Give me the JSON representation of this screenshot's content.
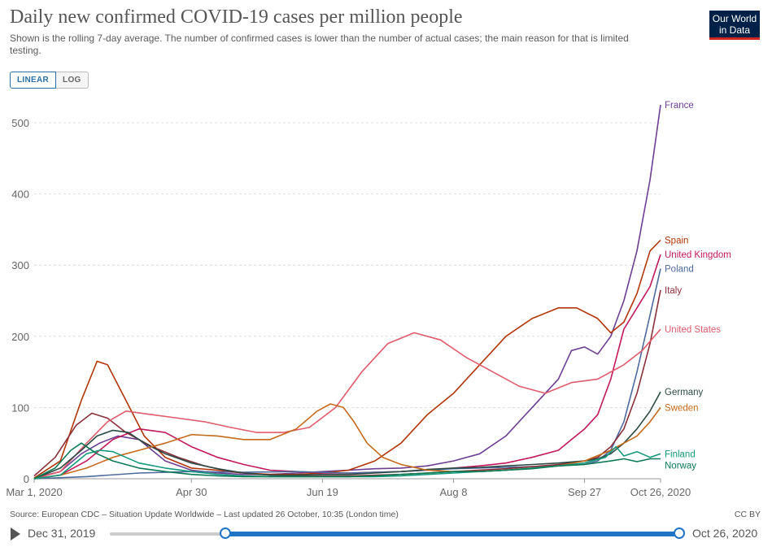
{
  "header": {
    "title": "Daily new confirmed COVID-19 cases per million people",
    "subtitle": "Shown is the rolling 7-day average. The number of confirmed cases is lower than the number of actual cases; the main reason for that is limited testing.",
    "logo_line1": "Our World",
    "logo_line2": "in Data"
  },
  "scale": {
    "linear_label": "LINEAR",
    "log_label": "LOG",
    "selected": "LINEAR"
  },
  "footer": {
    "source": "Source: European CDC – Situation Update Worldwide – Last updated 26 October, 10:35 (London time)",
    "license": "CC BY"
  },
  "timeline": {
    "start_label": "Dec 31, 2019",
    "end_label": "Oct 26, 2020",
    "range_start": "Mar 1, 2020",
    "range_end": "Oct 26, 2020"
  },
  "chart_data": {
    "type": "line",
    "title": "Daily new confirmed COVID-19 cases per million people",
    "x_unit": "days since Mar 1, 2020",
    "xlim": [
      0,
      239
    ],
    "ylim": [
      0,
      530
    ],
    "y_ticks": [
      0,
      100,
      200,
      300,
      400,
      500
    ],
    "x_ticks": [
      {
        "day": 0,
        "label": "Mar 1, 2020"
      },
      {
        "day": 60,
        "label": "Apr 30"
      },
      {
        "day": 110,
        "label": "Jun 19"
      },
      {
        "day": 160,
        "label": "Aug 8"
      },
      {
        "day": 210,
        "label": "Sep 27"
      },
      {
        "day": 239,
        "label": "Oct 26, 2020"
      }
    ],
    "grid": "horizontal",
    "legend": "end-of-line labels",
    "series": [
      {
        "name": "France",
        "color": "#6d3e91",
        "points": [
          [
            0,
            1
          ],
          [
            10,
            10
          ],
          [
            18,
            35
          ],
          [
            25,
            50
          ],
          [
            32,
            60
          ],
          [
            40,
            55
          ],
          [
            50,
            25
          ],
          [
            60,
            12
          ],
          [
            70,
            8
          ],
          [
            80,
            6
          ],
          [
            90,
            6
          ],
          [
            100,
            8
          ],
          [
            110,
            10
          ],
          [
            120,
            12
          ],
          [
            130,
            14
          ],
          [
            140,
            15
          ],
          [
            150,
            18
          ],
          [
            160,
            25
          ],
          [
            170,
            35
          ],
          [
            180,
            60
          ],
          [
            190,
            100
          ],
          [
            200,
            140
          ],
          [
            205,
            180
          ],
          [
            210,
            185
          ],
          [
            215,
            175
          ],
          [
            220,
            200
          ],
          [
            225,
            250
          ],
          [
            230,
            320
          ],
          [
            235,
            420
          ],
          [
            239,
            525
          ]
        ]
      },
      {
        "name": "Spain",
        "color": "#b13507",
        "points": [
          [
            0,
            1
          ],
          [
            10,
            25
          ],
          [
            18,
            110
          ],
          [
            24,
            165
          ],
          [
            28,
            160
          ],
          [
            35,
            110
          ],
          [
            42,
            60
          ],
          [
            50,
            30
          ],
          [
            60,
            15
          ],
          [
            70,
            12
          ],
          [
            80,
            8
          ],
          [
            90,
            6
          ],
          [
            100,
            6
          ],
          [
            110,
            8
          ],
          [
            120,
            12
          ],
          [
            130,
            25
          ],
          [
            140,
            50
          ],
          [
            150,
            90
          ],
          [
            160,
            120
          ],
          [
            170,
            160
          ],
          [
            180,
            200
          ],
          [
            190,
            225
          ],
          [
            200,
            240
          ],
          [
            207,
            240
          ],
          [
            215,
            225
          ],
          [
            220,
            205
          ],
          [
            225,
            220
          ],
          [
            230,
            260
          ],
          [
            235,
            320
          ],
          [
            239,
            335
          ]
        ]
      },
      {
        "name": "United Kingdom",
        "color": "#c2185b",
        "points": [
          [
            0,
            0
          ],
          [
            10,
            5
          ],
          [
            20,
            25
          ],
          [
            30,
            55
          ],
          [
            40,
            70
          ],
          [
            50,
            65
          ],
          [
            60,
            45
          ],
          [
            70,
            30
          ],
          [
            80,
            20
          ],
          [
            90,
            12
          ],
          [
            100,
            10
          ],
          [
            110,
            8
          ],
          [
            120,
            8
          ],
          [
            130,
            9
          ],
          [
            140,
            10
          ],
          [
            150,
            12
          ],
          [
            160,
            15
          ],
          [
            170,
            18
          ],
          [
            180,
            22
          ],
          [
            190,
            30
          ],
          [
            200,
            40
          ],
          [
            205,
            55
          ],
          [
            210,
            70
          ],
          [
            215,
            90
          ],
          [
            220,
            140
          ],
          [
            225,
            210
          ],
          [
            230,
            240
          ],
          [
            235,
            270
          ],
          [
            239,
            315
          ]
        ]
      },
      {
        "name": "Poland",
        "color": "#4c6a9c",
        "points": [
          [
            0,
            0
          ],
          [
            20,
            3
          ],
          [
            40,
            8
          ],
          [
            60,
            10
          ],
          [
            80,
            9
          ],
          [
            100,
            10
          ],
          [
            120,
            8
          ],
          [
            140,
            10
          ],
          [
            160,
            14
          ],
          [
            180,
            16
          ],
          [
            200,
            18
          ],
          [
            210,
            20
          ],
          [
            215,
            25
          ],
          [
            220,
            40
          ],
          [
            225,
            80
          ],
          [
            230,
            150
          ],
          [
            235,
            230
          ],
          [
            239,
            295
          ]
        ]
      },
      {
        "name": "Italy",
        "color": "#883039",
        "points": [
          [
            0,
            4
          ],
          [
            8,
            30
          ],
          [
            16,
            75
          ],
          [
            22,
            92
          ],
          [
            28,
            85
          ],
          [
            35,
            65
          ],
          [
            45,
            45
          ],
          [
            55,
            30
          ],
          [
            65,
            18
          ],
          [
            75,
            10
          ],
          [
            85,
            6
          ],
          [
            100,
            4
          ],
          [
            120,
            4
          ],
          [
            140,
            6
          ],
          [
            160,
            10
          ],
          [
            180,
            14
          ],
          [
            200,
            20
          ],
          [
            210,
            25
          ],
          [
            215,
            30
          ],
          [
            220,
            45
          ],
          [
            225,
            70
          ],
          [
            230,
            120
          ],
          [
            235,
            190
          ],
          [
            239,
            265
          ]
        ]
      },
      {
        "name": "United States",
        "color": "#e05b6b",
        "points": [
          [
            0,
            0
          ],
          [
            10,
            10
          ],
          [
            20,
            50
          ],
          [
            28,
            80
          ],
          [
            35,
            95
          ],
          [
            45,
            90
          ],
          [
            55,
            85
          ],
          [
            65,
            80
          ],
          [
            75,
            72
          ],
          [
            85,
            65
          ],
          [
            95,
            65
          ],
          [
            105,
            72
          ],
          [
            115,
            100
          ],
          [
            125,
            150
          ],
          [
            135,
            190
          ],
          [
            145,
            205
          ],
          [
            155,
            195
          ],
          [
            165,
            170
          ],
          [
            175,
            150
          ],
          [
            185,
            130
          ],
          [
            195,
            120
          ],
          [
            205,
            135
          ],
          [
            215,
            140
          ],
          [
            225,
            160
          ],
          [
            232,
            180
          ],
          [
            239,
            210
          ]
        ]
      },
      {
        "name": "Germany",
        "color": "#2c4a44",
        "points": [
          [
            0,
            0
          ],
          [
            10,
            15
          ],
          [
            18,
            40
          ],
          [
            24,
            60
          ],
          [
            30,
            68
          ],
          [
            36,
            65
          ],
          [
            42,
            50
          ],
          [
            50,
            35
          ],
          [
            60,
            22
          ],
          [
            70,
            14
          ],
          [
            80,
            8
          ],
          [
            90,
            5
          ],
          [
            100,
            5
          ],
          [
            110,
            6
          ],
          [
            120,
            6
          ],
          [
            130,
            8
          ],
          [
            140,
            10
          ],
          [
            150,
            13
          ],
          [
            160,
            15
          ],
          [
            170,
            16
          ],
          [
            180,
            18
          ],
          [
            190,
            20
          ],
          [
            200,
            22
          ],
          [
            210,
            25
          ],
          [
            215,
            28
          ],
          [
            220,
            35
          ],
          [
            225,
            50
          ],
          [
            230,
            70
          ],
          [
            235,
            95
          ],
          [
            239,
            122
          ]
        ]
      },
      {
        "name": "Sweden",
        "color": "#c56a1a",
        "points": [
          [
            0,
            0
          ],
          [
            10,
            5
          ],
          [
            20,
            15
          ],
          [
            30,
            30
          ],
          [
            40,
            40
          ],
          [
            50,
            50
          ],
          [
            60,
            62
          ],
          [
            70,
            60
          ],
          [
            80,
            55
          ],
          [
            90,
            55
          ],
          [
            100,
            70
          ],
          [
            108,
            95
          ],
          [
            113,
            105
          ],
          [
            118,
            100
          ],
          [
            122,
            80
          ],
          [
            127,
            50
          ],
          [
            133,
            30
          ],
          [
            140,
            20
          ],
          [
            150,
            12
          ],
          [
            160,
            10
          ],
          [
            170,
            10
          ],
          [
            180,
            12
          ],
          [
            190,
            15
          ],
          [
            200,
            18
          ],
          [
            210,
            25
          ],
          [
            220,
            40
          ],
          [
            230,
            60
          ],
          [
            235,
            80
          ],
          [
            239,
            100
          ]
        ]
      },
      {
        "name": "Finland",
        "color": "#139a7e",
        "points": [
          [
            0,
            0
          ],
          [
            10,
            5
          ],
          [
            15,
            20
          ],
          [
            20,
            35
          ],
          [
            25,
            40
          ],
          [
            30,
            38
          ],
          [
            35,
            30
          ],
          [
            40,
            22
          ],
          [
            50,
            15
          ],
          [
            60,
            10
          ],
          [
            70,
            6
          ],
          [
            80,
            4
          ],
          [
            90,
            3
          ],
          [
            100,
            3
          ],
          [
            110,
            3
          ],
          [
            120,
            3
          ],
          [
            130,
            3
          ],
          [
            140,
            4
          ],
          [
            150,
            6
          ],
          [
            160,
            8
          ],
          [
            170,
            10
          ],
          [
            180,
            12
          ],
          [
            190,
            15
          ],
          [
            200,
            18
          ],
          [
            210,
            22
          ],
          [
            218,
            30
          ],
          [
            222,
            45
          ],
          [
            225,
            32
          ],
          [
            230,
            38
          ],
          [
            235,
            30
          ],
          [
            239,
            35
          ]
        ]
      },
      {
        "name": "Norway",
        "color": "#0c7a55",
        "points": [
          [
            0,
            0
          ],
          [
            8,
            15
          ],
          [
            14,
            40
          ],
          [
            18,
            50
          ],
          [
            24,
            35
          ],
          [
            30,
            25
          ],
          [
            40,
            15
          ],
          [
            50,
            10
          ],
          [
            60,
            6
          ],
          [
            70,
            4
          ],
          [
            80,
            3
          ],
          [
            90,
            3
          ],
          [
            100,
            3
          ],
          [
            110,
            3
          ],
          [
            120,
            3
          ],
          [
            130,
            4
          ],
          [
            140,
            6
          ],
          [
            150,
            8
          ],
          [
            160,
            10
          ],
          [
            170,
            10
          ],
          [
            180,
            12
          ],
          [
            190,
            14
          ],
          [
            200,
            18
          ],
          [
            210,
            20
          ],
          [
            220,
            25
          ],
          [
            225,
            28
          ],
          [
            230,
            24
          ],
          [
            235,
            28
          ],
          [
            239,
            28
          ]
        ]
      }
    ]
  }
}
